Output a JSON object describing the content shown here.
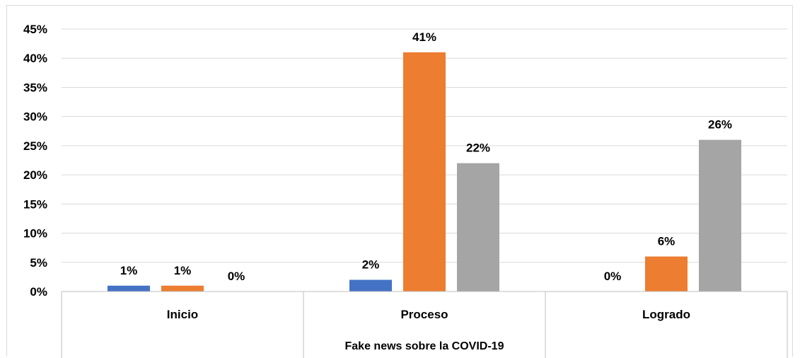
{
  "chart_data": {
    "type": "bar",
    "title": "",
    "xlabel": "Fake news sobre la COVID-19",
    "ylabel": "",
    "ylim": [
      0,
      45
    ],
    "y_tick_step": 5,
    "y_tick_format": "percent",
    "grid": true,
    "legend": "none",
    "categories": [
      "Inicio",
      "Proceso",
      "Logrado"
    ],
    "series": [
      {
        "values": [
          1,
          2,
          0
        ],
        "labels": [
          "1%",
          "2%",
          "0%"
        ],
        "color": "#4472c4"
      },
      {
        "values": [
          1,
          41,
          6
        ],
        "labels": [
          "1%",
          "41%",
          "6%"
        ],
        "color": "#ed7d31"
      },
      {
        "values": [
          0,
          22,
          26
        ],
        "labels": [
          "0%",
          "22%",
          "26%"
        ],
        "color": "#a5a5a5"
      }
    ]
  },
  "colors": {
    "grid": "#d9d9d9",
    "axis": "#bfbfbf",
    "text": "#000000"
  }
}
